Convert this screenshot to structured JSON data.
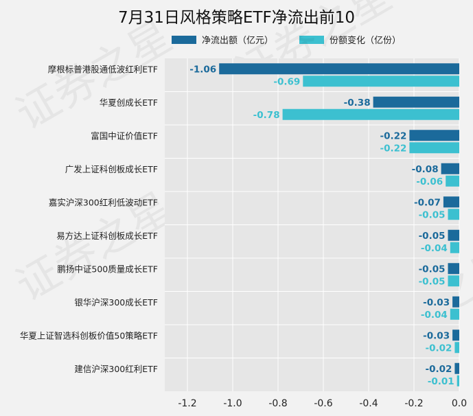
{
  "colors": {
    "background": "#f2f2f2",
    "plot_bg": "#e6e6e6",
    "net_outflow": "#1b6a9b",
    "share_change": "#3cc0d0",
    "grid": "#ffffff"
  },
  "chart_data": {
    "type": "bar",
    "orientation": "horizontal",
    "title": "7月31日风格策略ETF净流出前10",
    "categories": [
      "摩根标普港股通低波红利ETF",
      "华夏创成长ETF",
      "富国中证价值ETF",
      "广发上证科创板成长ETF",
      "嘉实沪深300红利低波动ETF",
      "易方达上证科创板成长ETF",
      "鹏扬中证500质量成长ETF",
      "银华沪深300成长ETF",
      "华夏上证智选科创板价值50策略ETF",
      "建信沪深300红利ETF"
    ],
    "series": [
      {
        "name": "净流出额（亿元）",
        "values": [
          -1.06,
          -0.38,
          -0.22,
          -0.08,
          -0.07,
          -0.05,
          -0.05,
          -0.03,
          -0.03,
          -0.02
        ],
        "labels": [
          "-1.06",
          "-0.38",
          "-0.22",
          "-0.08",
          "-0.07",
          "-0.05",
          "-0.05",
          "-0.03",
          "-0.03",
          "-0.02"
        ]
      },
      {
        "name": "份额变化（亿份）",
        "values": [
          -0.69,
          -0.78,
          -0.22,
          -0.06,
          -0.05,
          -0.04,
          -0.05,
          -0.04,
          -0.02,
          -0.01
        ],
        "labels": [
          "-0.69",
          "-0.78",
          "-0.22",
          "-0.06",
          "-0.05",
          "-0.04",
          "-0.05",
          "-0.04",
          "-0.02",
          "-0.01"
        ]
      }
    ],
    "xlim": [
      -1.3,
      0.0
    ],
    "xticks": [
      -1.2,
      -1.0,
      -0.8,
      -0.6,
      -0.4,
      -0.2,
      0.0
    ],
    "xtick_labels": [
      "-1.2",
      "-1.0",
      "-0.8",
      "-0.6",
      "-0.4",
      "-0.2",
      "0.0"
    ],
    "grid": true,
    "legend_position": "top",
    "watermark": "证券之星"
  }
}
